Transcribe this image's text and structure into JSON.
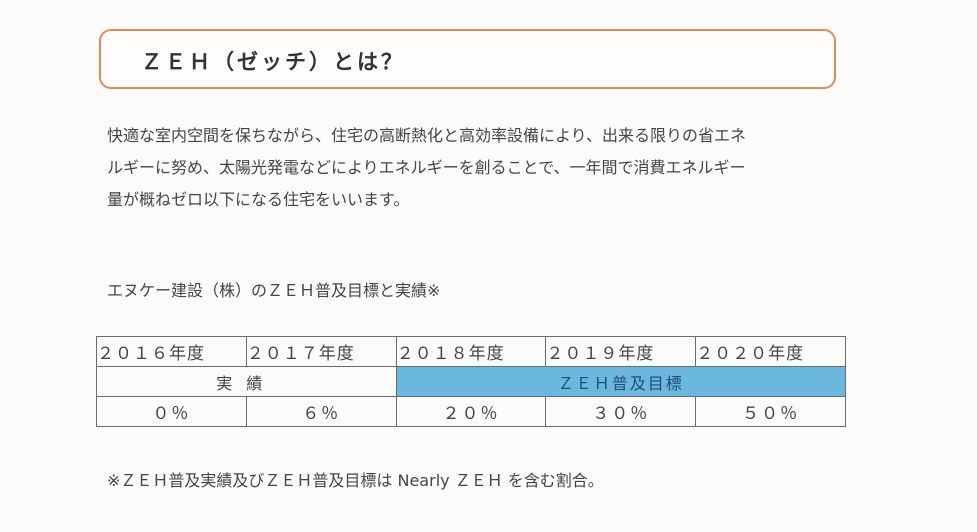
{
  "title": "ＺＥＨ（ゼッチ）とは？",
  "description": [
    "快適な室内空間を保ちながら、住宅の高断熱化と高効率設備により、出来る限りの省エネ",
    "ルギーに努め、太陽光発電などによりエネルギーを創ることで、一年間で消費エネルギー",
    "量が概ねゼロ以下になる住宅をいいます。"
  ],
  "table_title": "エヌケー建設（株）のＺＥＨ普及目標と実績※",
  "table": {
    "years": [
      "２０１６年度",
      "２０１７年度",
      "２０１８年度",
      "２０１９年度",
      "２０２０年度"
    ],
    "actual_label": "実績",
    "target_label": "ＺＥＨ普及目標",
    "values": [
      "０％",
      "６％",
      "２０％",
      "３０％",
      "５０％"
    ]
  },
  "note": "※ＺＥＨ普及実績及びＺＥＨ普及目標は Nearly ＺＥＨ を含む割合。",
  "colors": {
    "title_border": "#e58a57",
    "target_cell": "#6ab8df"
  }
}
